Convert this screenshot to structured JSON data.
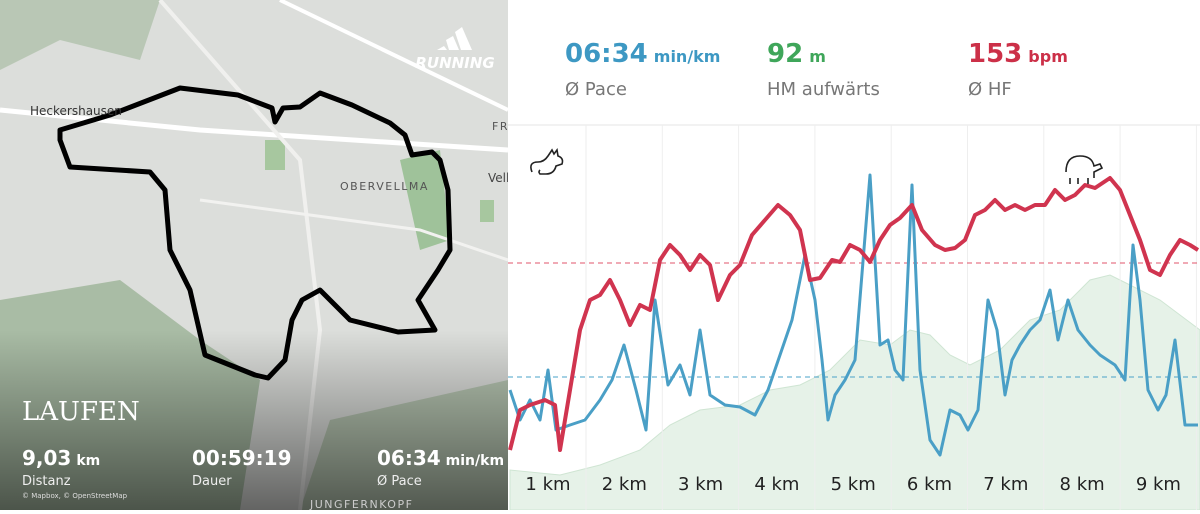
{
  "map": {
    "labels": [
      "Heckershausen",
      "OBERVELLMA",
      "Vell",
      "FR",
      "JUNGFERNKOPF"
    ],
    "attribution": "© Mapbox, © OpenStreetMap",
    "brand": "RUNNING",
    "title": "LAUFEN",
    "stats": [
      {
        "value": "9,03",
        "unit": "km",
        "label": "Distanz"
      },
      {
        "value": "00:59:19",
        "unit": "",
        "label": "Dauer"
      },
      {
        "value": "06:34",
        "unit": "min/km",
        "label": "Ø Pace"
      }
    ]
  },
  "summary": [
    {
      "value": "06:34",
      "unit": "min/km",
      "label": "Ø Pace"
    },
    {
      "value": "92",
      "unit": "m",
      "label": "HM aufwärts"
    },
    {
      "value": "153",
      "unit": "bpm",
      "label": "Ø HF"
    }
  ],
  "chart": {
    "x_labels": [
      "1 km",
      "2 km",
      "3 km",
      "4 km",
      "5 km",
      "6 km",
      "7 km",
      "8 km",
      "9 km"
    ]
  }
}
